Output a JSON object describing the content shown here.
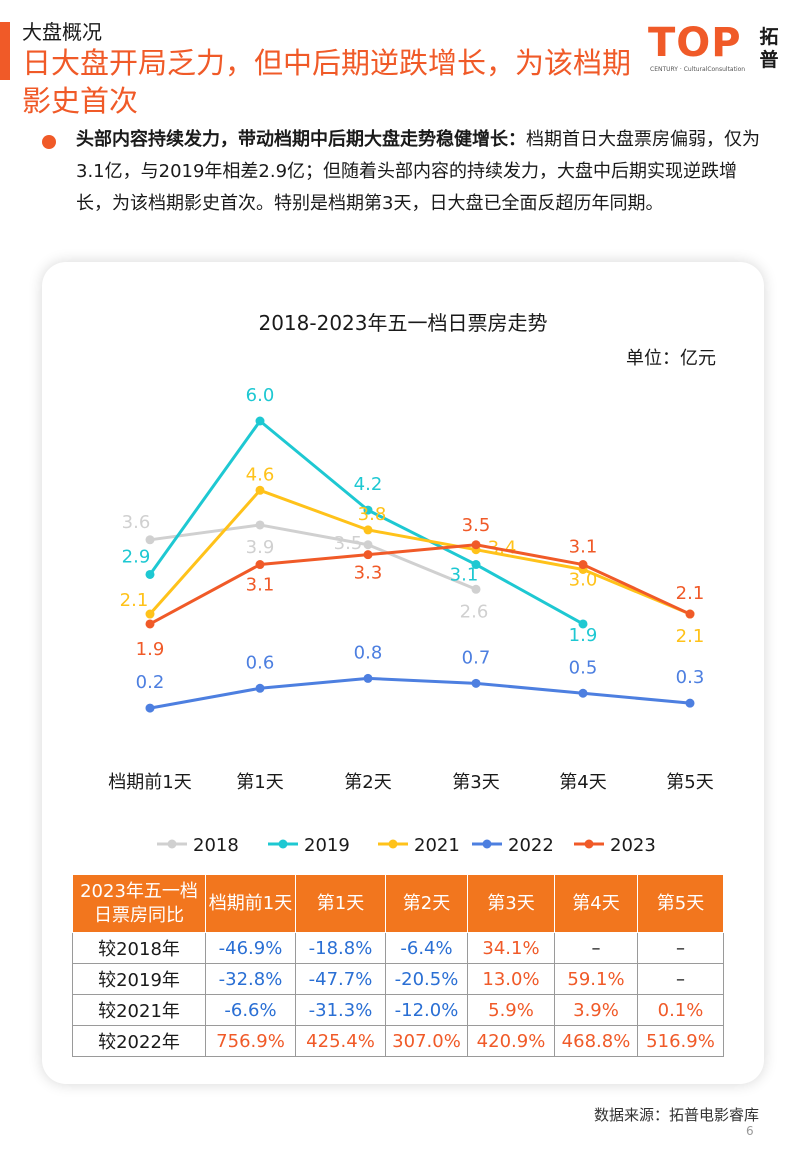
{
  "header": {
    "section_label": "大盘概况",
    "headline": "日大盘开局乏力，但中后期逆跌增长，为该档期影史首次"
  },
  "logo": {
    "brand": "TOP",
    "sub": "CENTURY · CulturalConsultation",
    "cn": "拓普"
  },
  "bullet": {
    "bold": "头部内容持续发力，带动档期中后期大盘走势稳健增长：",
    "text": "档期首日大盘票房偏弱，仅为3.1亿，与2019年相差2.9亿；但随着头部内容的持续发力，大盘中后期实现逆跌增长，为该档期影史首次。特别是档期第3天，日大盘已全面反超历年同期。"
  },
  "chart_data": {
    "type": "line",
    "title": "2018-2023年五一档日票房走势",
    "unit": "单位：亿元",
    "categories": [
      "档期前1天",
      "第1天",
      "第2天",
      "第3天",
      "第4天",
      "第5天"
    ],
    "series": [
      {
        "name": "2018",
        "color": "#d0d0d0",
        "values": [
          3.6,
          3.9,
          3.5,
          2.6,
          null,
          null
        ],
        "labels": [
          "3.6",
          "3.9",
          "3.5",
          "2.6",
          null,
          null
        ]
      },
      {
        "name": "2019",
        "color": "#1ec8d2",
        "values": [
          2.9,
          6.0,
          4.2,
          3.1,
          1.9,
          null
        ],
        "labels": [
          "2.9",
          "6.0",
          "4.2",
          "3.1",
          "1.9",
          null
        ]
      },
      {
        "name": "2021",
        "color": "#ffc21a",
        "values": [
          2.1,
          4.6,
          3.8,
          3.4,
          3.0,
          2.1
        ],
        "labels": [
          "2.1",
          "4.6",
          "3.8",
          "3.4",
          "3.0",
          "2.1"
        ]
      },
      {
        "name": "2022",
        "color": "#4d7fe0",
        "values": [
          0.2,
          0.6,
          0.8,
          0.7,
          0.5,
          0.3
        ],
        "labels": [
          "0.2",
          "0.6",
          "0.8",
          "0.7",
          "0.5",
          "0.3"
        ]
      },
      {
        "name": "2023",
        "color": "#f05a28",
        "values": [
          1.9,
          3.1,
          3.3,
          3.5,
          3.1,
          2.1
        ],
        "labels": [
          "1.9",
          "3.1",
          "3.3",
          "3.5",
          "3.1",
          "2.1"
        ]
      }
    ],
    "legend_position": "bottom",
    "grid": false
  },
  "table": {
    "corner": "2023年五一档日票房同比",
    "columns": [
      "档期前1天",
      "第1天",
      "第2天",
      "第3天",
      "第4天",
      "第5天"
    ],
    "rows": [
      {
        "label": "较2018年",
        "cells": [
          "-46.9%",
          "-18.8%",
          "-6.4%",
          "34.1%",
          "–",
          "–"
        ]
      },
      {
        "label": "较2019年",
        "cells": [
          "-32.8%",
          "-47.7%",
          "-20.5%",
          "13.0%",
          "59.1%",
          "–"
        ]
      },
      {
        "label": "较2021年",
        "cells": [
          "-6.6%",
          "-31.3%",
          "-12.0%",
          "5.9%",
          "3.9%",
          "0.1%"
        ]
      },
      {
        "label": "较2022年",
        "cells": [
          "756.9%",
          "425.4%",
          "307.0%",
          "420.9%",
          "468.8%",
          "516.9%"
        ]
      }
    ]
  },
  "footer": {
    "source": "数据来源：拓普电影睿库",
    "page_number": "6"
  }
}
